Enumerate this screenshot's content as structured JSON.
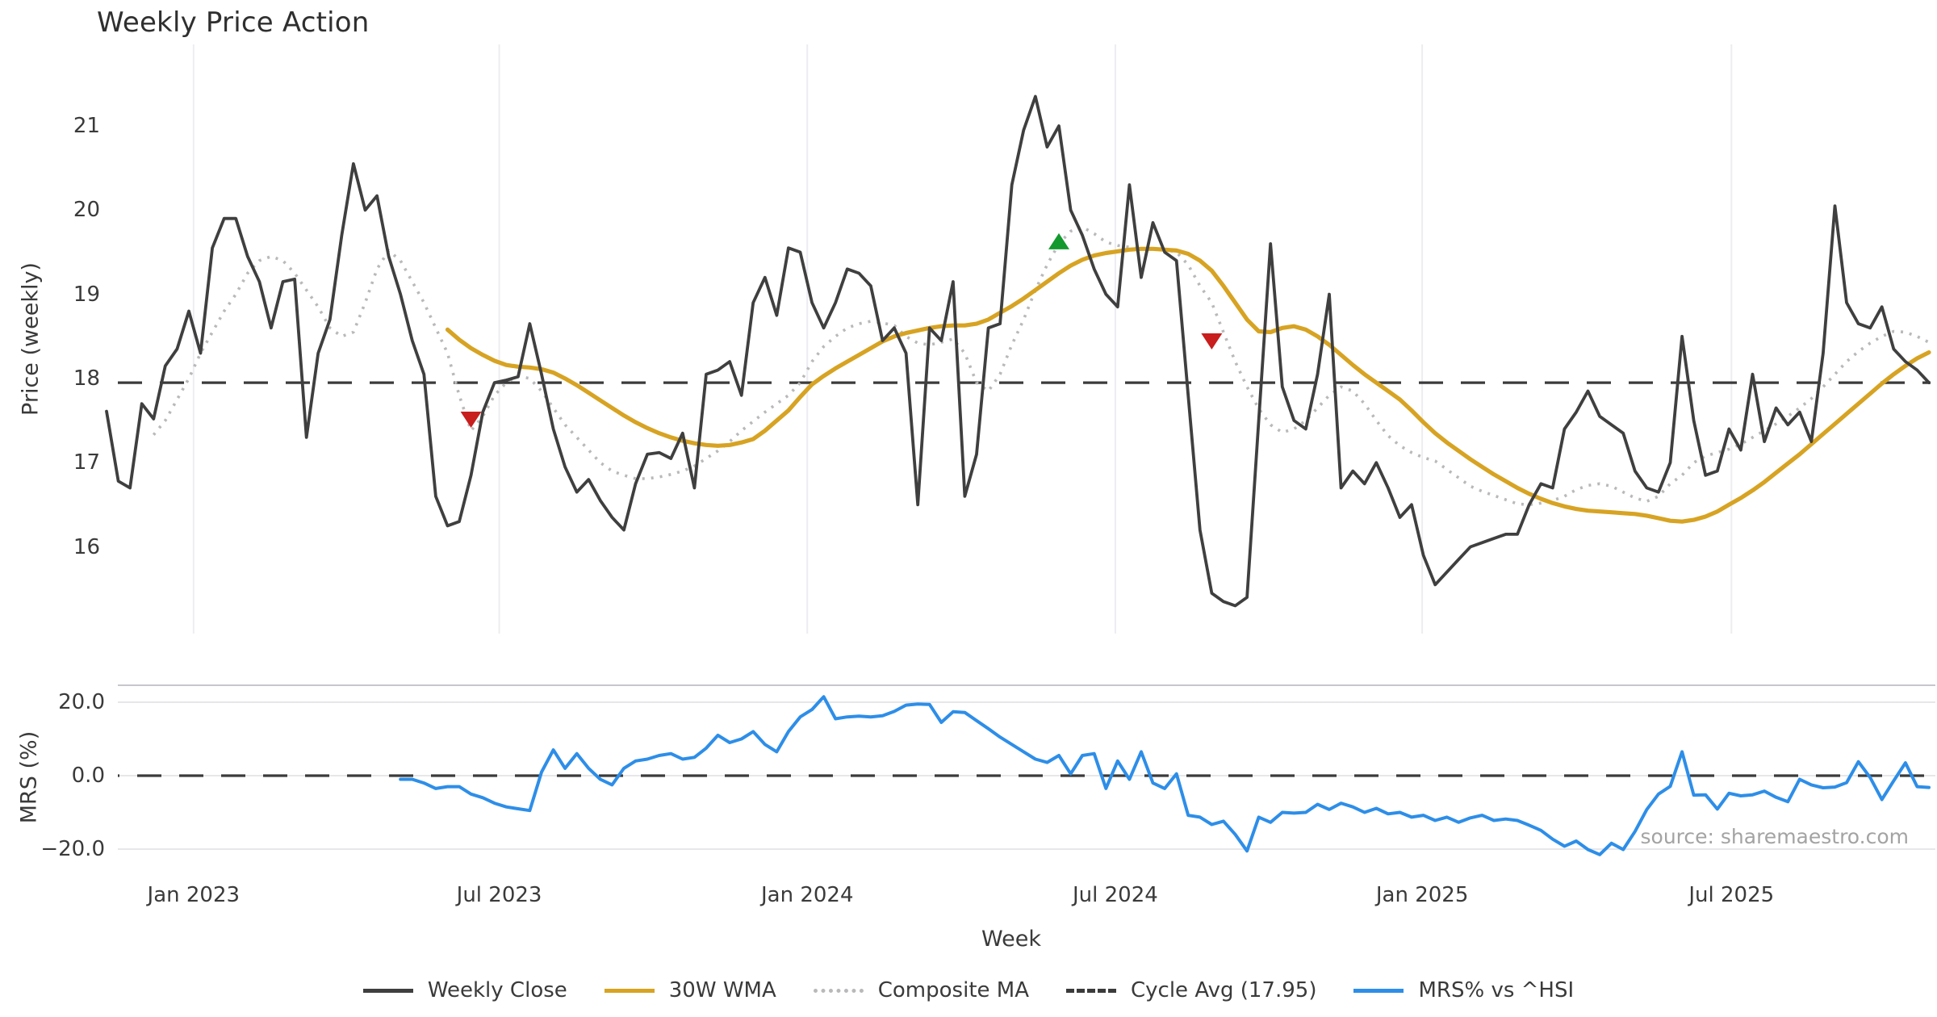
{
  "title": "Weekly Price Action",
  "source_note": "source: sharemaestro.com",
  "axes": {
    "price_label": "Price (weekly)",
    "price_ticks": [
      21,
      20,
      19,
      18,
      17,
      16
    ],
    "mrs_label": "MRS (%)",
    "mrs_ticks": [
      {
        "label": "20.0",
        "value": 20
      },
      {
        "label": "0.0",
        "value": 0
      },
      {
        "label": "−20.0",
        "value": -20
      }
    ],
    "x_title": "Week",
    "x_ticks": [
      {
        "label": "Jan 2023",
        "week": 7.4
      },
      {
        "label": "Jul 2023",
        "week": 33.4
      },
      {
        "label": "Jan 2024",
        "week": 59.6
      },
      {
        "label": "Jul 2024",
        "week": 85.8
      },
      {
        "label": "Jan 2025",
        "week": 111.9
      },
      {
        "label": "Jul 2025",
        "week": 138.2
      }
    ]
  },
  "legend": {
    "items": [
      {
        "label": "Weekly Close",
        "color": "#3f3f3f",
        "style": "solid"
      },
      {
        "label": "30W WMA",
        "color": "#d7a322",
        "style": "solid"
      },
      {
        "label": "Composite MA",
        "color": "#b9b9bb",
        "style": "dotted"
      },
      {
        "label": "Cycle Avg (17.95)",
        "color": "#3b3b3b",
        "style": "dashed"
      },
      {
        "label": "MRS% vs ^HSI",
        "color": "#2d8ee8",
        "style": "solid"
      }
    ]
  },
  "colors": {
    "weekly_close": "#3f3f3f",
    "wma": "#d7a322",
    "composite": "#b9b9bb",
    "cycle_avg": "#3b3b3b",
    "mrs": "#2d8ee8",
    "buy_marker": "#13992e",
    "sell_marker": "#c81e1e",
    "grid_vertical": "#ededf1",
    "grid_horizontal": "#e7e7ea",
    "spine": "#c7c7cb"
  },
  "chart_data": [
    {
      "type": "line",
      "title": "Weekly Price Action",
      "xlabel": "Week",
      "ylabel": "Price (weekly)",
      "x_unit": "week_index",
      "ylim": [
        15.0,
        21.95
      ],
      "grid": "vertical-only",
      "cycle_avg_value": 17.95,
      "series": [
        {
          "name": "Weekly Close",
          "start_week": 0,
          "values": [
            17.61,
            16.78,
            16.7,
            17.7,
            17.52,
            18.15,
            18.35,
            18.8,
            18.3,
            19.55,
            19.9,
            19.9,
            19.45,
            19.15,
            18.6,
            19.15,
            19.18,
            17.3,
            18.3,
            18.7,
            19.7,
            20.55,
            20.0,
            20.17,
            19.45,
            19.0,
            18.45,
            18.05,
            16.6,
            16.25,
            16.3,
            16.85,
            17.6,
            17.95,
            17.98,
            18.02,
            18.65,
            18.05,
            17.4,
            16.95,
            16.65,
            16.8,
            16.55,
            16.35,
            16.2,
            16.75,
            17.1,
            17.12,
            17.05,
            17.35,
            16.7,
            18.05,
            18.1,
            18.2,
            17.8,
            18.9,
            19.2,
            18.75,
            19.55,
            19.5,
            18.9,
            18.6,
            18.9,
            19.3,
            19.25,
            19.1,
            18.45,
            18.6,
            18.3,
            16.5,
            18.6,
            18.45,
            19.15,
            16.6,
            17.1,
            18.6,
            18.65,
            20.3,
            20.95,
            21.35,
            20.75,
            21.0,
            20.0,
            19.7,
            19.3,
            19.0,
            18.85,
            20.3,
            19.2,
            19.85,
            19.5,
            19.4,
            17.8,
            16.2,
            15.45,
            15.35,
            15.3,
            15.4,
            17.5,
            19.6,
            17.9,
            17.5,
            17.4,
            18.05,
            19.0,
            16.7,
            16.9,
            16.75,
            17.0,
            16.7,
            16.35,
            16.5,
            15.9,
            15.55,
            15.7,
            15.85,
            16.0,
            16.05,
            16.1,
            16.15,
            16.15,
            16.5,
            16.75,
            16.7,
            17.4,
            17.6,
            17.85,
            17.55,
            17.45,
            17.35,
            16.9,
            16.7,
            16.65,
            17.0,
            18.5,
            17.5,
            16.85,
            16.9,
            17.4,
            17.15,
            18.05,
            17.25,
            17.65,
            17.45,
            17.6,
            17.25,
            18.3,
            20.05,
            18.9,
            18.65,
            18.6,
            18.85,
            18.35,
            18.2,
            18.1,
            17.95
          ]
        },
        {
          "name": "30W WMA",
          "start_week": 29,
          "values": [
            18.58,
            18.46,
            18.36,
            18.28,
            18.21,
            18.16,
            18.14,
            18.13,
            18.11,
            18.07,
            18.0,
            17.92,
            17.83,
            17.74,
            17.65,
            17.56,
            17.48,
            17.41,
            17.35,
            17.3,
            17.26,
            17.23,
            17.21,
            17.2,
            17.21,
            17.24,
            17.28,
            17.38,
            17.5,
            17.62,
            17.78,
            17.93,
            18.03,
            18.12,
            18.2,
            18.28,
            18.36,
            18.44,
            18.5,
            18.54,
            18.57,
            18.6,
            18.62,
            18.63,
            18.63,
            18.65,
            18.7,
            18.78,
            18.86,
            18.95,
            19.05,
            19.15,
            19.25,
            19.34,
            19.41,
            19.46,
            19.49,
            19.51,
            19.53,
            19.54,
            19.54,
            19.53,
            19.52,
            19.48,
            19.4,
            19.28,
            19.1,
            18.9,
            18.7,
            18.56,
            18.55,
            18.6,
            18.62,
            18.58,
            18.5,
            18.4,
            18.28,
            18.16,
            18.05,
            17.95,
            17.85,
            17.75,
            17.62,
            17.48,
            17.35,
            17.24,
            17.14,
            17.04,
            16.95,
            16.86,
            16.78,
            16.7,
            16.63,
            16.57,
            16.52,
            16.48,
            16.45,
            16.43,
            16.42,
            16.41,
            16.4,
            16.39,
            16.37,
            16.34,
            16.31,
            16.3,
            16.32,
            16.36,
            16.42,
            16.5,
            16.58,
            16.67,
            16.77,
            16.88,
            16.99,
            17.1,
            17.22,
            17.34,
            17.46,
            17.58,
            17.7,
            17.82,
            17.94,
            18.05,
            18.15,
            18.24,
            18.31
          ]
        },
        {
          "name": "Composite MA",
          "start_week": 4,
          "values": [
            17.33,
            17.5,
            17.75,
            18.0,
            18.3,
            18.55,
            18.8,
            19.0,
            19.25,
            19.4,
            19.45,
            19.4,
            19.25,
            19.05,
            18.85,
            18.6,
            18.5,
            18.55,
            18.9,
            19.3,
            19.52,
            19.4,
            19.15,
            18.9,
            18.6,
            18.3,
            17.8,
            17.38,
            17.55,
            17.8,
            17.95,
            18.03,
            18.0,
            17.85,
            17.65,
            17.45,
            17.3,
            17.15,
            17.0,
            16.9,
            16.85,
            16.81,
            16.81,
            16.83,
            16.86,
            16.9,
            16.96,
            17.05,
            17.14,
            17.25,
            17.38,
            17.49,
            17.6,
            17.7,
            17.8,
            17.95,
            18.2,
            18.38,
            18.5,
            18.6,
            18.65,
            18.68,
            18.66,
            18.63,
            18.5,
            18.42,
            18.4,
            18.43,
            18.47,
            18.3,
            17.95,
            17.85,
            18.05,
            18.4,
            18.7,
            19.05,
            19.35,
            19.6,
            19.75,
            19.8,
            19.72,
            19.62,
            19.58,
            19.56,
            19.54,
            19.54,
            19.53,
            19.5,
            19.35,
            19.1,
            18.9,
            18.55,
            18.2,
            17.9,
            17.64,
            17.45,
            17.36,
            17.4,
            17.5,
            17.65,
            17.8,
            17.9,
            17.85,
            17.7,
            17.5,
            17.32,
            17.2,
            17.12,
            17.06,
            17.02,
            16.92,
            16.82,
            16.72,
            16.66,
            16.61,
            16.56,
            16.51,
            16.5,
            16.52,
            16.55,
            16.6,
            16.68,
            16.73,
            16.75,
            16.72,
            16.65,
            16.58,
            16.54,
            16.6,
            16.75,
            16.85,
            17.0,
            17.08,
            17.12,
            17.16,
            17.22,
            17.3,
            17.38,
            17.46,
            17.55,
            17.65,
            17.76,
            17.9,
            18.05,
            18.2,
            18.32,
            18.42,
            18.5,
            18.56,
            18.55,
            18.5,
            18.43
          ]
        }
      ],
      "markers": [
        {
          "week": 31,
          "price": 17.52,
          "type": "sell"
        },
        {
          "week": 81,
          "price": 19.62,
          "type": "buy"
        },
        {
          "week": 94,
          "price": 18.45,
          "type": "sell"
        }
      ]
    },
    {
      "type": "line",
      "ylabel": "MRS (%)",
      "x_unit": "week_index",
      "ylim": [
        -24.5,
        24.5
      ],
      "zero_line": true,
      "series": [
        {
          "name": "MRS% vs ^HSI",
          "start_week": 25,
          "values": [
            -1.0,
            -1.0,
            -2.0,
            -3.5,
            -3.0,
            -3.0,
            -5.0,
            -6.0,
            -7.5,
            -8.5,
            -9.0,
            -9.5,
            1.0,
            7.0,
            2.0,
            6.0,
            2.0,
            -1.0,
            -2.5,
            2.0,
            4.0,
            4.5,
            5.5,
            6.0,
            4.5,
            5.0,
            7.5,
            11.0,
            9.0,
            10.0,
            12.0,
            8.5,
            6.5,
            12.0,
            16.0,
            18.0,
            21.5,
            15.5,
            16.0,
            16.2,
            16.0,
            16.3,
            17.5,
            19.2,
            19.5,
            19.4,
            14.5,
            17.4,
            17.2,
            15.0,
            12.8,
            10.5,
            8.5,
            6.5,
            4.5,
            3.6,
            5.5,
            0.5,
            5.5,
            6.0,
            -3.5,
            4.0,
            -1.0,
            6.5,
            -2.0,
            -3.5,
            0.5,
            -10.8,
            -11.3,
            -13.3,
            -12.4,
            -16.0,
            -20.5,
            -11.3,
            -12.7,
            -10.0,
            -10.2,
            -10.0,
            -7.8,
            -9.2,
            -7.5,
            -8.5,
            -10.0,
            -8.9,
            -10.4,
            -10.0,
            -11.3,
            -10.8,
            -12.2,
            -11.3,
            -12.7,
            -11.5,
            -10.8,
            -12.2,
            -11.8,
            -12.2,
            -13.5,
            -14.9,
            -17.3,
            -19.2,
            -17.8,
            -20.1,
            -21.5,
            -18.4,
            -20.1,
            -15.2,
            -9.2,
            -5.0,
            -2.9,
            6.5,
            -5.3,
            -5.2,
            -9.1,
            -4.8,
            -5.5,
            -5.2,
            -4.2,
            -5.9,
            -7.1,
            -1.0,
            -2.5,
            -3.3,
            -3.1,
            -1.9,
            3.8,
            -0.5,
            -6.5,
            -1.4,
            3.5,
            -3.0,
            -3.2
          ]
        }
      ]
    }
  ]
}
